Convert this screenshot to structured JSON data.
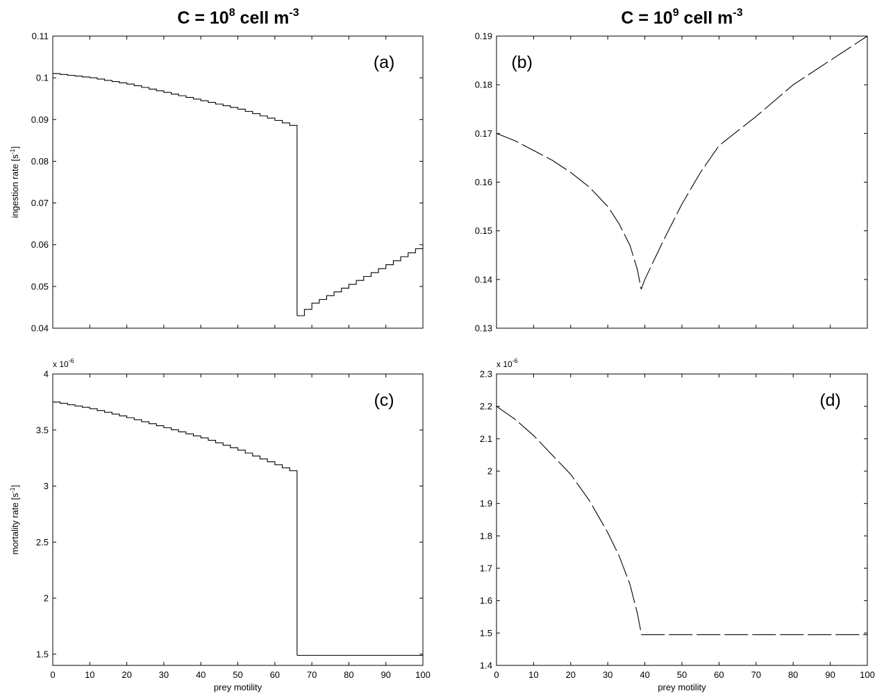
{
  "column_titles": [
    {
      "base": "C = 10",
      "exp": "8",
      "mid": " cell m",
      "exp2": "-3"
    },
    {
      "base": "C = 10",
      "exp": "9",
      "mid": " cell m",
      "exp2": "-3"
    }
  ],
  "chart_data": [
    {
      "type": "line",
      "panel_label": "(a)",
      "xlim": [
        0,
        100
      ],
      "ylim": [
        0.04,
        0.11
      ],
      "xticks": [
        0,
        10,
        20,
        30,
        40,
        50,
        60,
        70,
        80,
        90,
        100
      ],
      "yticks": [
        0.04,
        0.05,
        0.06,
        0.07,
        0.08,
        0.09,
        0.1,
        0.11
      ],
      "ytick_labels": [
        "0.04",
        "0.05",
        "0.06",
        "0.07",
        "0.08",
        "0.09",
        "0.1",
        "0.11"
      ],
      "show_x_tick_labels": false,
      "xlabel": "",
      "ylabel": {
        "text": "ingestion rate [s",
        "sup": "-1",
        "end": "]"
      },
      "scale_factor": null,
      "step": true,
      "segments": [
        {
          "x": [
            0,
            10,
            20,
            30,
            40,
            50,
            60,
            66
          ],
          "y": [
            0.101,
            0.1,
            0.0985,
            0.0965,
            0.0945,
            0.0925,
            0.0898,
            0.088
          ]
        },
        {
          "x": [
            66,
            66
          ],
          "y": [
            0.088,
            0.043
          ]
        },
        {
          "x": [
            66,
            70,
            80,
            90,
            100
          ],
          "y": [
            0.043,
            0.046,
            0.0505,
            0.0552,
            0.06
          ]
        }
      ]
    },
    {
      "type": "line",
      "panel_label": "(b)",
      "xlim": [
        0,
        100
      ],
      "ylim": [
        0.13,
        0.19
      ],
      "xticks": [
        0,
        10,
        20,
        30,
        40,
        50,
        60,
        70,
        80,
        90,
        100
      ],
      "yticks": [
        0.13,
        0.14,
        0.15,
        0.16,
        0.17,
        0.18,
        0.19
      ],
      "ytick_labels": [
        "0.13",
        "0.14",
        "0.15",
        "0.16",
        "0.17",
        "0.18",
        "0.19"
      ],
      "show_x_tick_labels": false,
      "xlabel": "",
      "ylabel": null,
      "scale_factor": null,
      "step": false,
      "dashed": true,
      "segments": [
        {
          "x": [
            0,
            5,
            10,
            15,
            20,
            25,
            30,
            33,
            36,
            38,
            39
          ],
          "y": [
            0.17,
            0.1685,
            0.1665,
            0.1645,
            0.162,
            0.159,
            0.155,
            0.1515,
            0.147,
            0.142,
            0.138
          ]
        },
        {
          "x": [
            39,
            40,
            45,
            50,
            55,
            60,
            70,
            80,
            90,
            100
          ],
          "y": [
            0.138,
            0.14,
            0.148,
            0.1555,
            0.162,
            0.1675,
            0.1735,
            0.18,
            0.185,
            0.19
          ]
        }
      ]
    },
    {
      "type": "line",
      "panel_label": "(c)",
      "xlim": [
        0,
        100
      ],
      "ylim": [
        1.4,
        4
      ],
      "xticks": [
        0,
        10,
        20,
        30,
        40,
        50,
        60,
        70,
        80,
        90,
        100
      ],
      "xtick_labels": [
        "0",
        "10",
        "20",
        "30",
        "40",
        "50",
        "60",
        "70",
        "80",
        "90",
        "100"
      ],
      "yticks": [
        1.5,
        2,
        2.5,
        3,
        3.5,
        4
      ],
      "ytick_labels": [
        "1.5",
        "2",
        "2.5",
        "3",
        "3.5",
        "4"
      ],
      "show_x_tick_labels": true,
      "xlabel": "prey motility",
      "ylabel": {
        "text": "mortality rate [s",
        "sup": "-1",
        "end": "]"
      },
      "scale_factor": {
        "text": "x 10",
        "sup": "-6"
      },
      "step": true,
      "segments": [
        {
          "x": [
            0,
            10,
            20,
            30,
            40,
            50,
            60,
            66
          ],
          "y": [
            3.75,
            3.69,
            3.61,
            3.52,
            3.43,
            3.32,
            3.19,
            3.11
          ]
        },
        {
          "x": [
            66,
            66
          ],
          "y": [
            3.11,
            1.49
          ]
        },
        {
          "x": [
            66,
            100
          ],
          "y": [
            1.49,
            1.49
          ]
        }
      ]
    },
    {
      "type": "line",
      "panel_label": "(d)",
      "xlim": [
        0,
        100
      ],
      "ylim": [
        1.4,
        2.3
      ],
      "xticks": [
        0,
        10,
        20,
        30,
        40,
        50,
        60,
        70,
        80,
        90,
        100
      ],
      "xtick_labels": [
        "0",
        "10",
        "20",
        "30",
        "40",
        "50",
        "60",
        "70",
        "80",
        "90",
        "100"
      ],
      "yticks": [
        1.4,
        1.5,
        1.6,
        1.7,
        1.8,
        1.9,
        2,
        2.1,
        2.2,
        2.3
      ],
      "ytick_labels": [
        "1.4",
        "1.5",
        "1.6",
        "1.7",
        "1.8",
        "1.9",
        "2",
        "2.1",
        "2.2",
        "2.3"
      ],
      "show_x_tick_labels": true,
      "xlabel": "prey motility",
      "ylabel": null,
      "scale_factor": {
        "text": "x 10",
        "sup": "-6"
      },
      "step": false,
      "dashed": true,
      "segments": [
        {
          "x": [
            0,
            5,
            10,
            15,
            20,
            25,
            30,
            33,
            36,
            38,
            39
          ],
          "y": [
            2.2,
            2.16,
            2.11,
            2.05,
            1.99,
            1.91,
            1.81,
            1.74,
            1.65,
            1.56,
            1.5
          ]
        },
        {
          "x": [
            39,
            100
          ],
          "y": [
            1.495,
            1.495
          ]
        }
      ]
    }
  ]
}
